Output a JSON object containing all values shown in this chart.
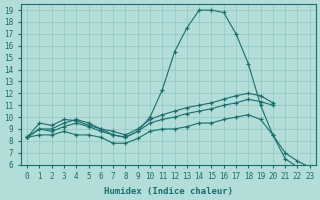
{
  "title": "",
  "xlabel": "Humidex (Indice chaleur)",
  "ylabel": "",
  "bg_color": "#b2ddd8",
  "line_color": "#1a6e6e",
  "grid_color": "#8cc8c0",
  "xlim": [
    -0.5,
    23.5
  ],
  "ylim": [
    6,
    19.5
  ],
  "xticks": [
    0,
    1,
    2,
    3,
    4,
    5,
    6,
    7,
    8,
    9,
    10,
    11,
    12,
    13,
    14,
    15,
    16,
    17,
    18,
    19,
    20,
    21,
    22,
    23
  ],
  "yticks": [
    6,
    7,
    8,
    9,
    10,
    11,
    12,
    13,
    14,
    15,
    16,
    17,
    18,
    19
  ],
  "curves": [
    {
      "x": [
        0,
        1,
        2,
        3,
        4,
        5,
        6,
        7,
        8,
        9,
        10,
        11,
        12,
        13,
        14,
        15,
        16,
        17,
        18,
        19,
        20,
        21,
        22,
        23
      ],
      "y": [
        8.3,
        9.5,
        9.3,
        9.8,
        9.7,
        9.3,
        9.0,
        8.5,
        8.3,
        8.8,
        10.0,
        12.3,
        15.5,
        17.5,
        19.0,
        19.0,
        18.8,
        17.0,
        14.5,
        11.0,
        8.5,
        6.5,
        5.8,
        null
      ]
    },
    {
      "x": [
        0,
        1,
        2,
        3,
        4,
        5,
        6,
        7,
        8,
        9,
        10,
        11,
        12,
        13,
        14,
        15,
        16,
        17,
        18,
        19,
        20,
        21,
        22,
        23
      ],
      "y": [
        8.3,
        9.0,
        9.0,
        9.5,
        9.8,
        9.5,
        9.0,
        8.8,
        8.5,
        9.0,
        9.8,
        10.2,
        10.5,
        10.8,
        11.0,
        11.2,
        11.5,
        11.8,
        12.0,
        11.8,
        11.2,
        null,
        null,
        null
      ]
    },
    {
      "x": [
        0,
        1,
        2,
        3,
        4,
        5,
        6,
        7,
        8,
        9,
        10,
        11,
        12,
        13,
        14,
        15,
        16,
        17,
        18,
        19,
        20,
        21,
        22,
        23
      ],
      "y": [
        8.3,
        9.0,
        8.8,
        9.2,
        9.5,
        9.2,
        8.8,
        8.5,
        8.3,
        8.8,
        9.5,
        9.8,
        10.0,
        10.3,
        10.5,
        10.7,
        11.0,
        11.2,
        11.5,
        11.3,
        11.0,
        null,
        null,
        null
      ]
    },
    {
      "x": [
        0,
        1,
        2,
        3,
        4,
        5,
        6,
        7,
        8,
        9,
        10,
        11,
        12,
        13,
        14,
        15,
        16,
        17,
        18,
        19,
        20,
        21,
        22,
        23
      ],
      "y": [
        8.3,
        8.5,
        8.5,
        8.8,
        8.5,
        8.5,
        8.3,
        7.8,
        7.8,
        8.2,
        8.8,
        9.0,
        9.0,
        9.2,
        9.5,
        9.5,
        9.8,
        10.0,
        10.2,
        9.8,
        8.5,
        7.0,
        6.3,
        5.8
      ]
    }
  ]
}
